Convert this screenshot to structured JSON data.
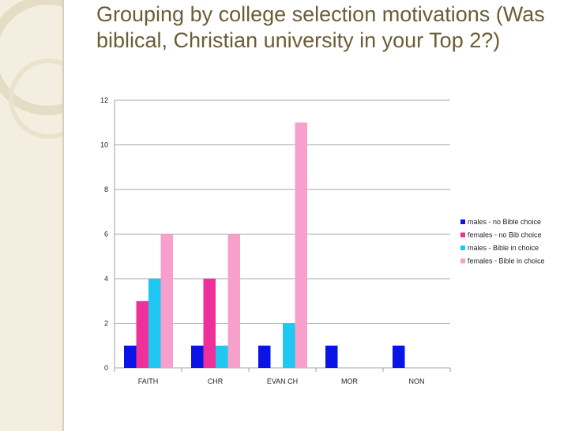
{
  "slide": {
    "title": "Grouping by college selection motivations (Was biblical, Christian university in your Top 2?)"
  },
  "chart_data": {
    "type": "bar",
    "categories": [
      "FAITH",
      "CHR",
      "EVAN CH",
      "MOR",
      "NON"
    ],
    "series": [
      {
        "name": "males - no Bible choice",
        "color": "#0a14e6",
        "values": [
          1,
          1,
          1,
          1,
          1
        ]
      },
      {
        "name": "females - no Bib choice",
        "color": "#f0309a",
        "values": [
          3,
          4,
          0,
          0,
          0
        ]
      },
      {
        "name": "males - Bible in choice",
        "color": "#1ec8f0",
        "values": [
          4,
          1,
          2,
          0,
          0
        ]
      },
      {
        "name": "females - Bible in choice",
        "color": "#f7a0cc",
        "values": [
          6,
          6,
          11,
          0,
          0
        ]
      }
    ],
    "ylim": [
      0,
      12
    ],
    "yticks": [
      0,
      2,
      4,
      6,
      8,
      10,
      12
    ],
    "grid": true,
    "legend_position": "right"
  }
}
